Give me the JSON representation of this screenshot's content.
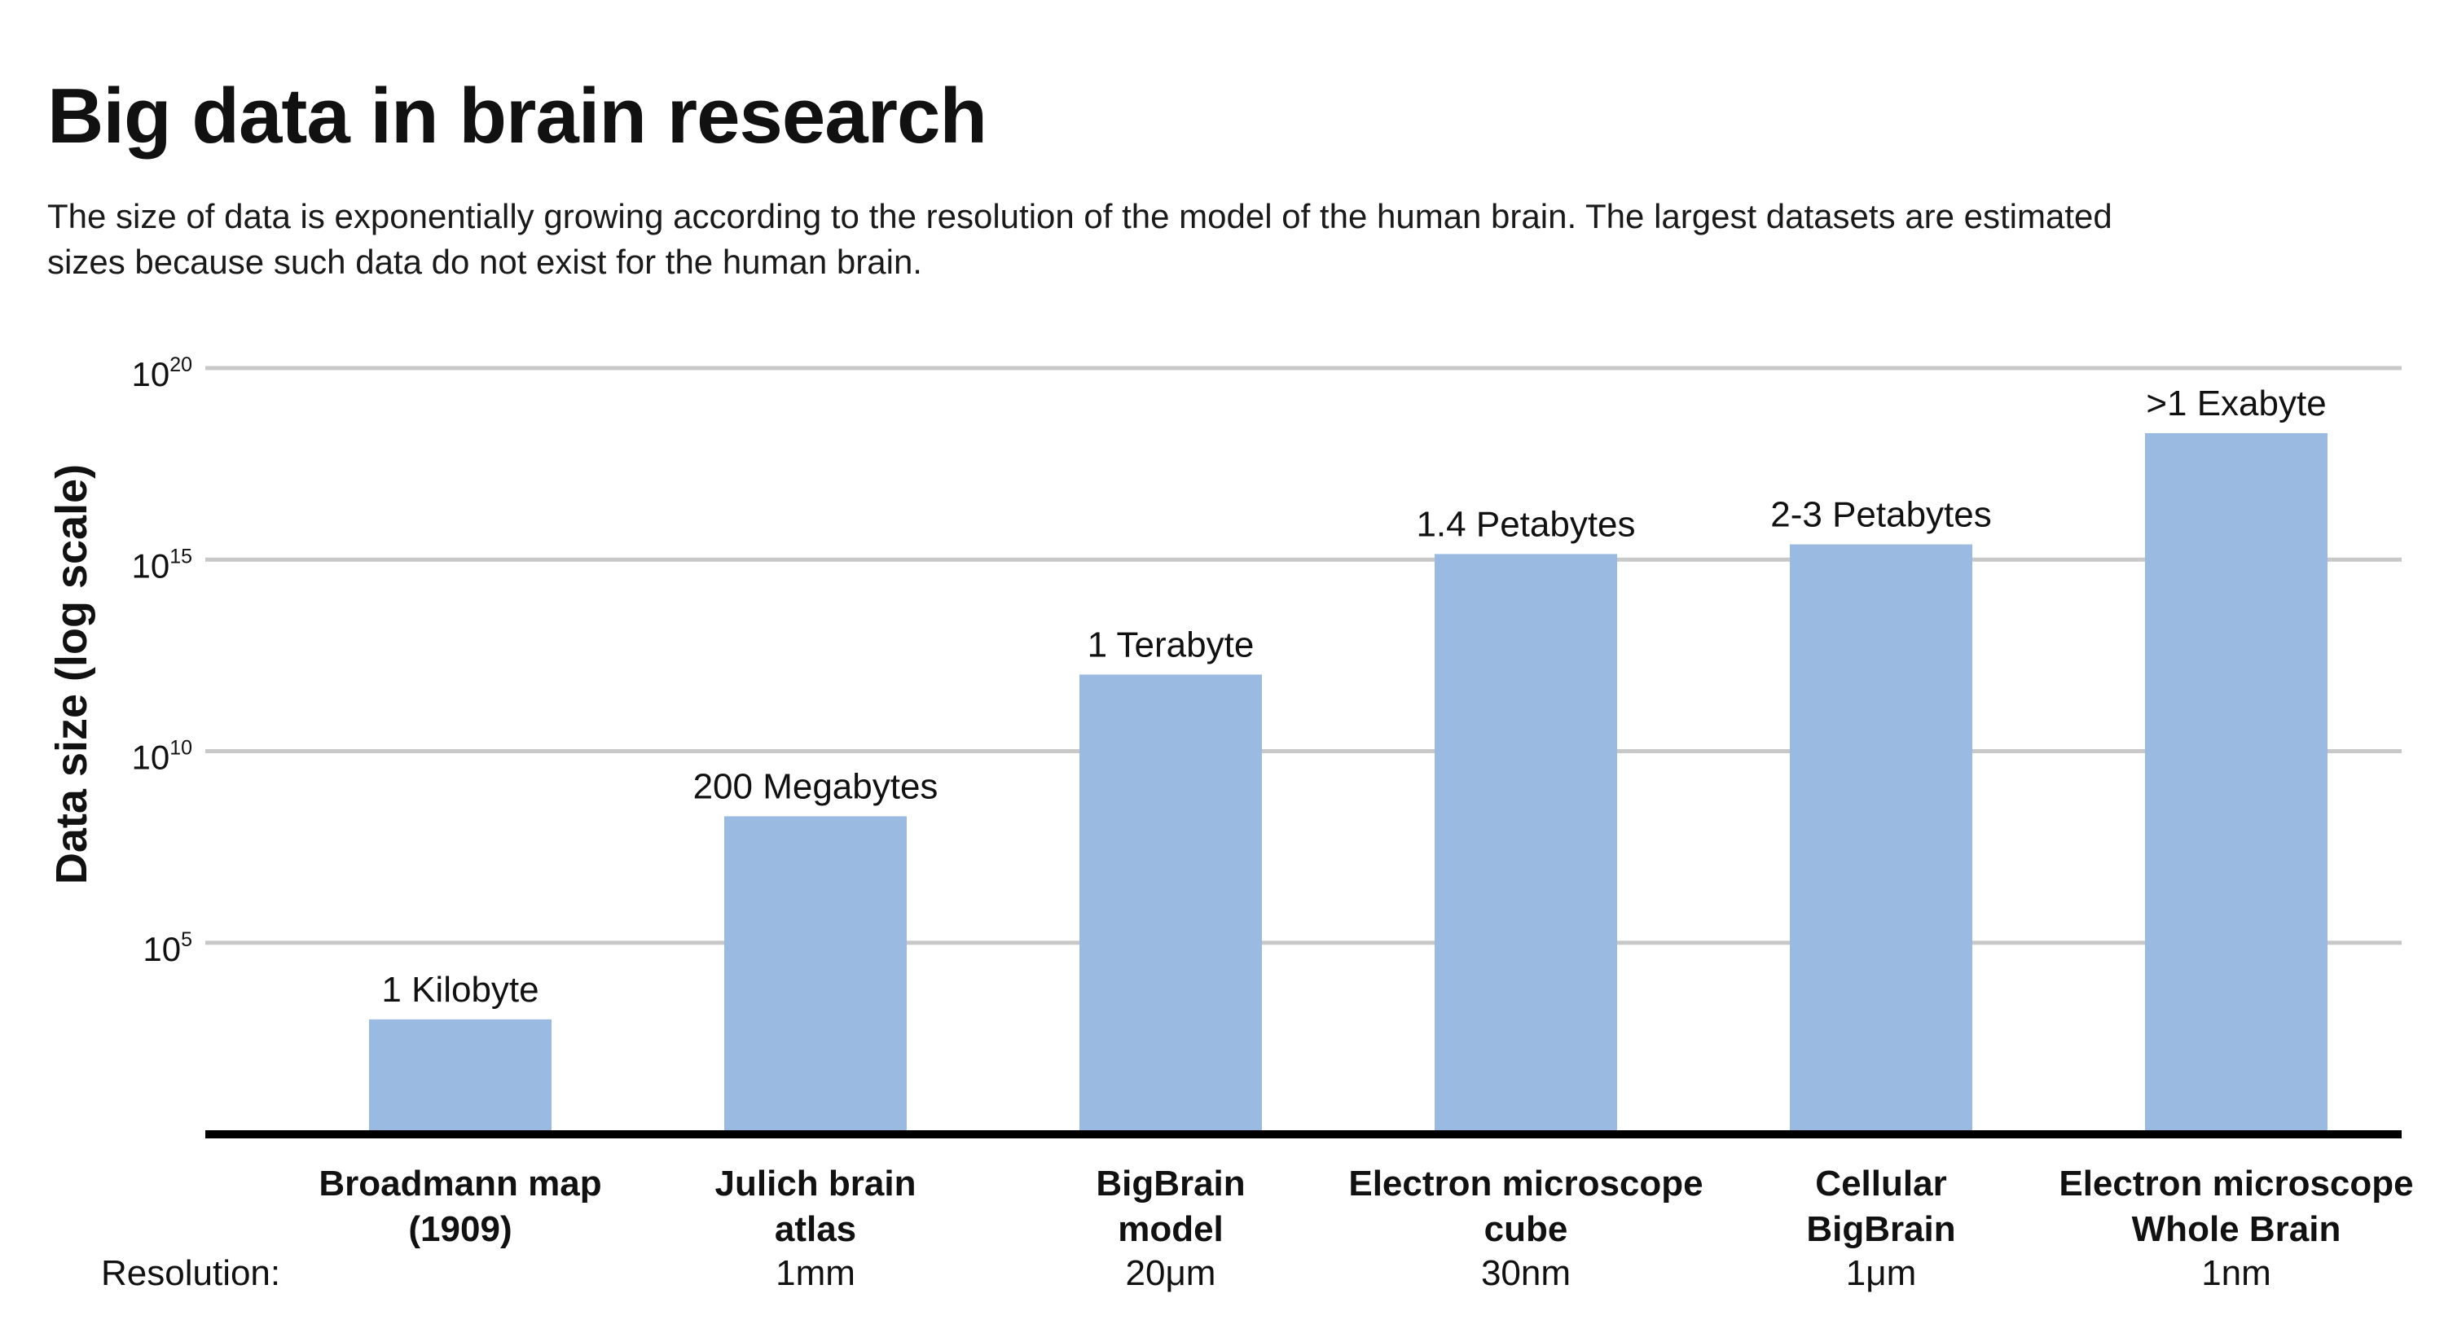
{
  "header": {
    "title": "Big data in brain research",
    "subtitle": "The size of data is exponentially growing according to the resolution of the model of the human brain. The largest datasets are estimated sizes because such data do not exist for the human brain."
  },
  "colors": {
    "bar": "#9bbae2",
    "grid": "#c8c8c8",
    "axis": "#000000"
  },
  "chart_data": {
    "type": "bar",
    "ylabel": "Data size (log scale)",
    "yscale": "log",
    "ylim": [
      1,
      1e+20
    ],
    "grid": true,
    "yticks": [
      {
        "value": 100000.0,
        "base": "10",
        "exp": "5"
      },
      {
        "value": 10000000000.0,
        "base": "10",
        "exp": "10"
      },
      {
        "value": 1000000000000000.0,
        "base": "10",
        "exp": "15"
      },
      {
        "value": 1e+20,
        "base": "10",
        "exp": "20"
      }
    ],
    "resolution_caption": "Resolution:",
    "categories": [
      {
        "lines": [
          "Broadmann map",
          "(1909)"
        ],
        "resolution": "",
        "value": 1000,
        "label": "1 Kilobyte"
      },
      {
        "lines": [
          "Julich brain",
          "atlas"
        ],
        "resolution": "1mm",
        "value": 200000000.0,
        "label": "200 Megabytes"
      },
      {
        "lines": [
          "BigBrain",
          "model"
        ],
        "resolution": "20μm",
        "value": 1000000000000.0,
        "label": "1 Terabyte"
      },
      {
        "lines": [
          "Electron microscope",
          "cube"
        ],
        "resolution": "30nm",
        "value": 1400000000000000.0,
        "label": "1.4 Petabytes"
      },
      {
        "lines": [
          "Cellular",
          "BigBrain"
        ],
        "resolution": "1μm",
        "value": 2500000000000000.0,
        "label": "2-3 Petabytes"
      },
      {
        "lines": [
          "Electron microscope",
          "Whole Brain"
        ],
        "resolution": "1nm",
        "value": 2e+18,
        "label": ">1 Exabyte"
      }
    ]
  }
}
